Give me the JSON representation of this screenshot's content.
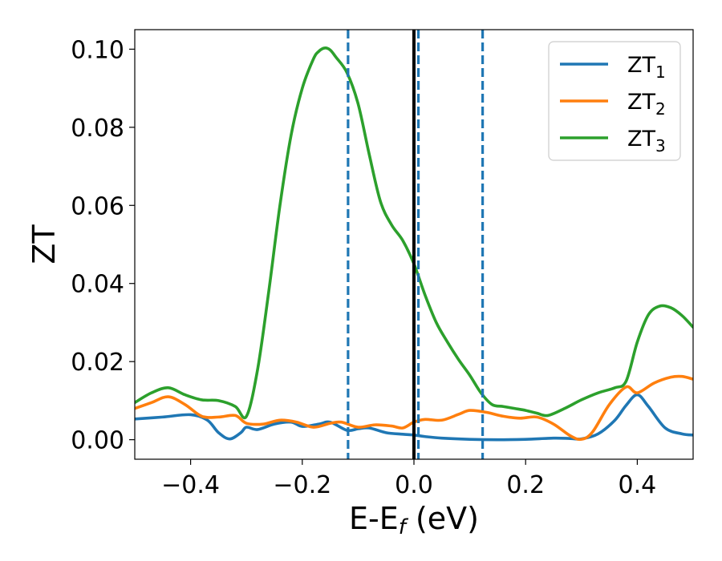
{
  "chart_data": {
    "type": "line",
    "xlabel": "E-E",
    "xlabel_sub": "f",
    "xlabel_unit": " (eV)",
    "ylabel": "ZT",
    "xlim": [
      -0.5,
      0.5
    ],
    "ylim": [
      -0.005,
      0.105
    ],
    "xticks": [
      -0.4,
      -0.2,
      0.0,
      0.2,
      0.4
    ],
    "xtick_labels": [
      "−0.4",
      "−0.2",
      "0.0",
      "0.2",
      "0.4"
    ],
    "yticks": [
      0.0,
      0.02,
      0.04,
      0.06,
      0.08,
      0.1
    ],
    "ytick_labels": [
      "0.00",
      "0.02",
      "0.04",
      "0.06",
      "0.08",
      "0.10"
    ],
    "legend_position": "top-right",
    "series": [
      {
        "name": "ZT",
        "subscript": "1",
        "color": "#1f77b4",
        "x": [
          -0.5,
          -0.45,
          -0.4,
          -0.37,
          -0.35,
          -0.33,
          -0.31,
          -0.3,
          -0.28,
          -0.25,
          -0.22,
          -0.2,
          -0.17,
          -0.15,
          -0.12,
          -0.1,
          -0.08,
          -0.05,
          -0.02,
          0.0,
          0.02,
          0.05,
          0.1,
          0.15,
          0.2,
          0.25,
          0.28,
          0.3,
          0.33,
          0.36,
          0.38,
          0.4,
          0.42,
          0.45,
          0.48,
          0.5
        ],
        "y": [
          0.0053,
          0.0058,
          0.0064,
          0.005,
          0.0018,
          0.0002,
          0.0018,
          0.0032,
          0.0026,
          0.004,
          0.0045,
          0.0034,
          0.004,
          0.0045,
          0.0024,
          0.0028,
          0.003,
          0.0018,
          0.0014,
          0.0012,
          0.0008,
          0.0004,
          0.0001,
          0.0,
          0.0001,
          0.0004,
          0.0003,
          0.0002,
          0.0015,
          0.005,
          0.0088,
          0.0115,
          0.0085,
          0.003,
          0.0015,
          0.0012
        ]
      },
      {
        "name": "ZT",
        "subscript": "2",
        "color": "#ff7f0e",
        "x": [
          -0.5,
          -0.47,
          -0.44,
          -0.41,
          -0.38,
          -0.35,
          -0.32,
          -0.3,
          -0.27,
          -0.24,
          -0.21,
          -0.18,
          -0.15,
          -0.13,
          -0.1,
          -0.07,
          -0.04,
          -0.02,
          0.0,
          0.02,
          0.05,
          0.08,
          0.1,
          0.13,
          0.16,
          0.19,
          0.22,
          0.25,
          0.28,
          0.3,
          0.32,
          0.35,
          0.38,
          0.4,
          0.43,
          0.46,
          0.48,
          0.5
        ],
        "y": [
          0.008,
          0.0095,
          0.011,
          0.009,
          0.006,
          0.0058,
          0.0062,
          0.0042,
          0.004,
          0.005,
          0.0045,
          0.0032,
          0.0042,
          0.0045,
          0.0032,
          0.0038,
          0.0035,
          0.003,
          0.0045,
          0.0052,
          0.005,
          0.0065,
          0.0075,
          0.007,
          0.006,
          0.0055,
          0.0058,
          0.004,
          0.001,
          0.0001,
          0.002,
          0.009,
          0.0135,
          0.012,
          0.0145,
          0.016,
          0.0162,
          0.0155
        ]
      },
      {
        "name": "ZT",
        "subscript": "3",
        "color": "#2ca02c",
        "x": [
          -0.5,
          -0.47,
          -0.44,
          -0.41,
          -0.38,
          -0.35,
          -0.32,
          -0.3,
          -0.28,
          -0.26,
          -0.24,
          -0.22,
          -0.2,
          -0.18,
          -0.17,
          -0.16,
          -0.15,
          -0.14,
          -0.12,
          -0.1,
          -0.08,
          -0.06,
          -0.04,
          -0.02,
          0.0,
          0.02,
          0.04,
          0.06,
          0.08,
          0.1,
          0.12,
          0.14,
          0.16,
          0.18,
          0.2,
          0.22,
          0.24,
          0.27,
          0.3,
          0.33,
          0.36,
          0.38,
          0.4,
          0.42,
          0.44,
          0.46,
          0.48,
          0.5
        ],
        "y": [
          0.0095,
          0.012,
          0.0133,
          0.0115,
          0.0102,
          0.01,
          0.0085,
          0.006,
          0.018,
          0.038,
          0.06,
          0.078,
          0.09,
          0.0975,
          0.0995,
          0.1003,
          0.0998,
          0.098,
          0.094,
          0.086,
          0.073,
          0.061,
          0.055,
          0.051,
          0.045,
          0.037,
          0.03,
          0.025,
          0.0205,
          0.0165,
          0.012,
          0.009,
          0.0085,
          0.008,
          0.0075,
          0.0068,
          0.0062,
          0.008,
          0.0102,
          0.012,
          0.0133,
          0.015,
          0.025,
          0.032,
          0.0342,
          0.0338,
          0.0318,
          0.0288
        ]
      }
    ],
    "vlines": [
      {
        "x": -0.118,
        "style": "dashed",
        "color": "#1f77b4"
      },
      {
        "x": 0.008,
        "style": "dashed",
        "color": "#1f77b4"
      },
      {
        "x": 0.123,
        "style": "dashed",
        "color": "#1f77b4"
      },
      {
        "x": 0.0,
        "style": "solid",
        "color": "#000000"
      }
    ]
  }
}
